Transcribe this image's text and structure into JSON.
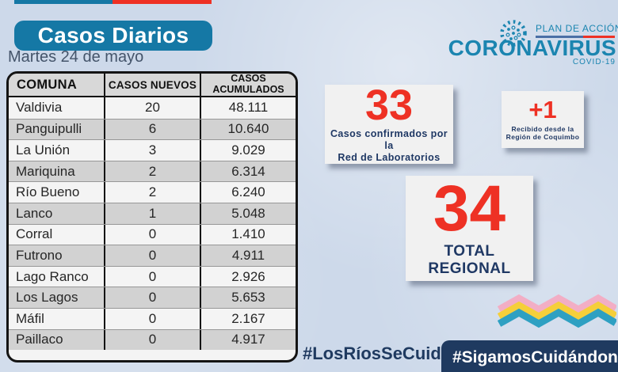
{
  "page": {
    "title": "Casos Diarios",
    "date": "Martes 24 de mayo"
  },
  "brand": {
    "plan": "PLAN DE ACCIÓN",
    "name": "CORONAVIRUS",
    "sub": "COVID-19",
    "virus_icon": "virus-icon"
  },
  "table": {
    "headers": [
      "COMUNA",
      "CASOS NUEVOS",
      "CASOS ACUMULADOS"
    ],
    "rows": [
      [
        "Valdivia",
        "20",
        "48.111"
      ],
      [
        "Panguipulli",
        "6",
        "10.640"
      ],
      [
        "La Unión",
        "3",
        "9.029"
      ],
      [
        "Mariquina",
        "2",
        "6.314"
      ],
      [
        "Río Bueno",
        "2",
        "6.240"
      ],
      [
        "Lanco",
        "1",
        "5.048"
      ],
      [
        "Corral",
        "0",
        "1.410"
      ],
      [
        "Futrono",
        "0",
        "4.911"
      ],
      [
        "Lago Ranco",
        "0",
        "2.926"
      ],
      [
        "Los Lagos",
        "0",
        "5.653"
      ],
      [
        "Máfil",
        "0",
        "2.167"
      ],
      [
        "Paillaco",
        "0",
        "4.917"
      ]
    ]
  },
  "stats": {
    "confirmed": {
      "value": "33",
      "label_line1": "Casos confirmados por la",
      "label_line2": "Red de Laboratorios"
    },
    "received": {
      "value": "+1",
      "label_line1": "Recibido desde la",
      "label_line2": "Región de Coquimbo"
    },
    "total": {
      "value": "34",
      "label": "TOTAL REGIONAL"
    }
  },
  "hashtags": {
    "left": "#LosRíosSeCuida",
    "right": "#SigamosCuidándonos"
  },
  "colors": {
    "bg": "#cdd9ea",
    "teal": "#1578a5",
    "logo_teal": "#1b85b0",
    "red": "#ee3124",
    "navy": "#1f3864",
    "hashtag_navy": "#1f3a60",
    "date_gray": "#44546a",
    "table_border": "#141414",
    "header_bg": "#d8d8d8",
    "row_light": "#f4f4f4",
    "row_dark": "#d2d2d2",
    "box_bg": "#f1f1f1",
    "underline_blue": "#4a6fa5",
    "zig_pink": "#f2aec5",
    "zig_yellow": "#f5cf3a",
    "zig_teal": "#2ea0c2"
  }
}
